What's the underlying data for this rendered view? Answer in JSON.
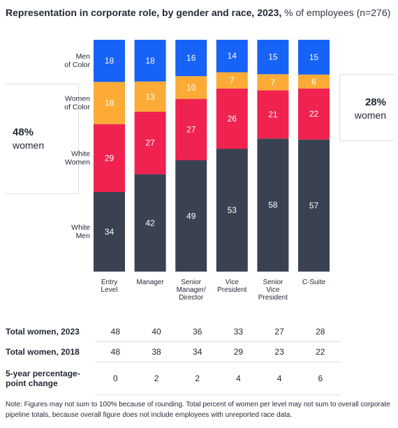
{
  "header": {
    "title_bold": "Representation in corporate  role, by gender and race, 2023,",
    "title_rest": " % of employees (n=276)"
  },
  "callouts": {
    "left": {
      "value": "48%",
      "label": "women"
    },
    "right": {
      "value": "28%",
      "label": "women"
    }
  },
  "colors": {
    "men_of_color": "#1762f7",
    "women_of_color": "#fbab36",
    "white_women": "#f0224f",
    "white_men": "#3a4252"
  },
  "chart_data": {
    "type": "bar",
    "stacked": true,
    "ylim": [
      0,
      100
    ],
    "categories": [
      [
        "Entry",
        "Level"
      ],
      [
        "Manager"
      ],
      [
        "Senior",
        "Manager/",
        "Director"
      ],
      [
        "Vice",
        "President"
      ],
      [
        "Senior",
        "Vice",
        "President"
      ],
      [
        "C-Suite"
      ]
    ],
    "series": [
      {
        "name": "White Men",
        "label_lines": [
          "White",
          "Men"
        ],
        "color": "#3a4252",
        "values": [
          34,
          42,
          49,
          53,
          58,
          57
        ]
      },
      {
        "name": "White Women",
        "label_lines": [
          "White",
          "Women"
        ],
        "color": "#f0224f",
        "values": [
          29,
          27,
          27,
          26,
          21,
          22
        ]
      },
      {
        "name": "Women of Color",
        "label_lines": [
          "Women",
          "of Color"
        ],
        "color": "#fbab36",
        "values": [
          18,
          13,
          10,
          7,
          7,
          6
        ]
      },
      {
        "name": "Men of Color",
        "label_lines": [
          "Men",
          "of Color"
        ],
        "color": "#1762f7",
        "values": [
          18,
          18,
          16,
          14,
          15,
          15
        ]
      }
    ]
  },
  "table": {
    "rows": [
      {
        "label": "Total women, 2023",
        "values": [
          "48",
          "40",
          "36",
          "33",
          "27",
          "28"
        ]
      },
      {
        "label": "Total women, 2018",
        "values": [
          "48",
          "38",
          "34",
          "29",
          "23",
          "22"
        ]
      },
      {
        "label": "5-year percentage-point change",
        "values": [
          "0",
          "2",
          "2",
          "4",
          "4",
          "6"
        ]
      }
    ]
  },
  "note": "Note: Figures may not sum to 100% because of rounding. Total percent of women per level may not sum to overall corporate pipeline totals, because overall figure does not include employees with unreported race data."
}
